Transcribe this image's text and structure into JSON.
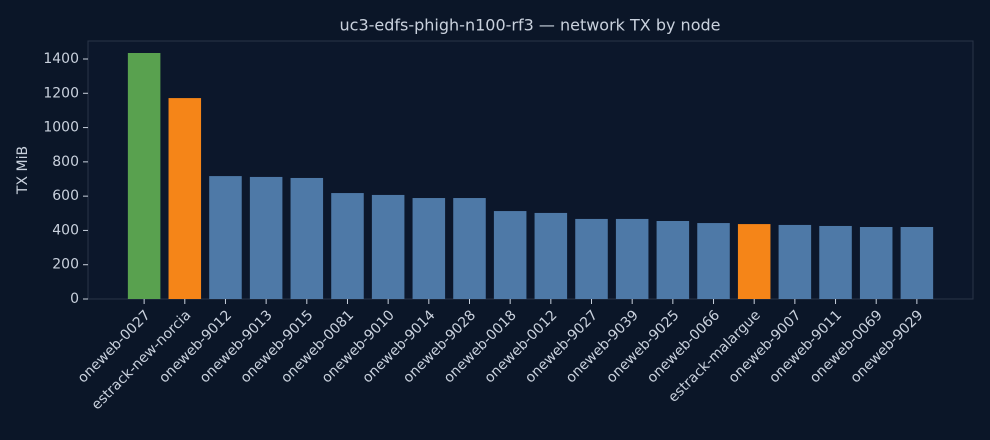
{
  "chart_data": {
    "type": "bar",
    "title": "uc3-edfs-phigh-n100-rf3 — network TX by node",
    "ylabel": "TX MiB",
    "categories": [
      "oneweb-0027",
      "estrack-new-norcia",
      "oneweb-9012",
      "oneweb-9013",
      "oneweb-9015",
      "oneweb-0081",
      "oneweb-9010",
      "oneweb-9014",
      "oneweb-9028",
      "oneweb-0018",
      "oneweb-0012",
      "oneweb-9027",
      "oneweb-9039",
      "oneweb-9025",
      "oneweb-0066",
      "estrack-malargue",
      "oneweb-9007",
      "oneweb-9011",
      "oneweb-0069",
      "oneweb-9029"
    ],
    "values": [
      1435,
      1172,
      717,
      712,
      706,
      618,
      607,
      589,
      589,
      513,
      502,
      467,
      467,
      455,
      443,
      437,
      432,
      426,
      420,
      420
    ],
    "colors": [
      "#59a14f",
      "#f58518",
      "#4e79a7",
      "#4e79a7",
      "#4e79a7",
      "#4e79a7",
      "#4e79a7",
      "#4e79a7",
      "#4e79a7",
      "#4e79a7",
      "#4e79a7",
      "#4e79a7",
      "#4e79a7",
      "#4e79a7",
      "#4e79a7",
      "#f58518",
      "#4e79a7",
      "#4e79a7",
      "#4e79a7",
      "#4e79a7"
    ],
    "ylim": [
      0,
      1505
    ],
    "yticks": [
      0,
      200,
      400,
      600,
      800,
      1000,
      1200,
      1400
    ],
    "grid": false
  }
}
